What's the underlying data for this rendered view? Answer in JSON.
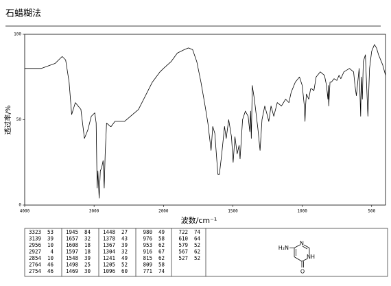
{
  "title": "石蜡糊法",
  "chart_data": {
    "type": "line",
    "xlabel": "波数/cm⁻¹",
    "ylabel": "透过率/%",
    "xlim": [
      4000,
      400
    ],
    "x_scale_break": 2000,
    "x_scale_factor": 2,
    "xticks": [
      4000,
      3000,
      2000,
      1500,
      1000,
      500
    ],
    "ylim": [
      0,
      100
    ],
    "yticks": [
      0,
      50,
      100
    ],
    "color": "#000000",
    "x": [
      4000,
      3760,
      3560,
      3460,
      3410,
      3360,
      3323,
      3270,
      3230,
      3190,
      3139,
      3090,
      3040,
      2990,
      2970,
      2956,
      2945,
      2927,
      2910,
      2890,
      2870,
      2854,
      2840,
      2820,
      2764,
      2754,
      2700,
      2560,
      2360,
      2160,
      2050,
      2000,
      1945,
      1900,
      1850,
      1820,
      1790,
      1760,
      1730,
      1700,
      1680,
      1657,
      1645,
      1630,
      1608,
      1597,
      1580,
      1560,
      1548,
      1530,
      1510,
      1498,
      1485,
      1469,
      1455,
      1448,
      1430,
      1410,
      1390,
      1378,
      1372,
      1367,
      1360,
      1345,
      1320,
      1304,
      1290,
      1270,
      1250,
      1241,
      1225,
      1205,
      1180,
      1150,
      1120,
      1096,
      1080,
      1050,
      1020,
      1000,
      985,
      980,
      976,
      970,
      953,
      940,
      930,
      916,
      900,
      870,
      840,
      825,
      815,
      812,
      809,
      800,
      790,
      771,
      750,
      735,
      722,
      700,
      660,
      630,
      620,
      610,
      600,
      590,
      579,
      575,
      567,
      560,
      545,
      527,
      515,
      500,
      480,
      465,
      450,
      420,
      400
    ],
    "values": [
      80,
      80,
      83,
      87,
      85,
      72,
      53,
      60,
      58,
      56,
      39,
      44,
      52,
      54,
      48,
      10,
      20,
      4,
      20,
      22,
      26,
      10,
      30,
      48,
      46,
      46,
      49,
      49,
      56,
      72,
      78,
      80,
      84,
      89,
      91,
      92,
      91,
      84,
      72,
      58,
      48,
      32,
      46,
      42,
      18,
      18,
      30,
      46,
      39,
      50,
      40,
      25,
      40,
      30,
      35,
      27,
      50,
      55,
      52,
      43,
      55,
      39,
      70,
      62,
      45,
      32,
      50,
      58,
      52,
      49,
      58,
      52,
      60,
      58,
      62,
      60,
      66,
      72,
      75,
      70,
      58,
      49,
      58,
      65,
      62,
      68,
      68,
      67,
      75,
      78,
      76,
      70,
      62,
      70,
      58,
      72,
      72,
      74,
      73,
      76,
      74,
      78,
      80,
      78,
      70,
      64,
      72,
      80,
      52,
      75,
      62,
      84,
      88,
      52,
      80,
      90,
      94,
      92,
      88,
      82,
      76
    ]
  },
  "table": {
    "columns": [
      [
        [
          "3323",
          "53"
        ],
        [
          "3139",
          "39"
        ],
        [
          "2956",
          "10"
        ],
        [
          "2927",
          "4"
        ],
        [
          "2854",
          "10"
        ],
        [
          "2764",
          "46"
        ],
        [
          "2754",
          "46"
        ]
      ],
      [
        [
          "1945",
          "84"
        ],
        [
          "1657",
          "32"
        ],
        [
          "1608",
          "18"
        ],
        [
          "1597",
          "18"
        ],
        [
          "1548",
          "39"
        ],
        [
          "1498",
          "25"
        ],
        [
          "1469",
          "30"
        ]
      ],
      [
        [
          "1448",
          "27"
        ],
        [
          "1378",
          "43"
        ],
        [
          "1367",
          "39"
        ],
        [
          "1304",
          "32"
        ],
        [
          "1241",
          "49"
        ],
        [
          "1205",
          "52"
        ],
        [
          "1096",
          "60"
        ]
      ],
      [
        [
          "980",
          "49"
        ],
        [
          "976",
          "58"
        ],
        [
          "953",
          "62"
        ],
        [
          "916",
          "67"
        ],
        [
          "815",
          "62"
        ],
        [
          "809",
          "58"
        ],
        [
          "771",
          "74"
        ]
      ],
      [
        [
          "722",
          "74"
        ],
        [
          "610",
          "64"
        ],
        [
          "579",
          "52"
        ],
        [
          "567",
          "62"
        ],
        [
          "527",
          "52"
        ]
      ]
    ]
  },
  "structure": {
    "labels": [
      "H₂N",
      "N",
      "NH",
      "O"
    ]
  }
}
